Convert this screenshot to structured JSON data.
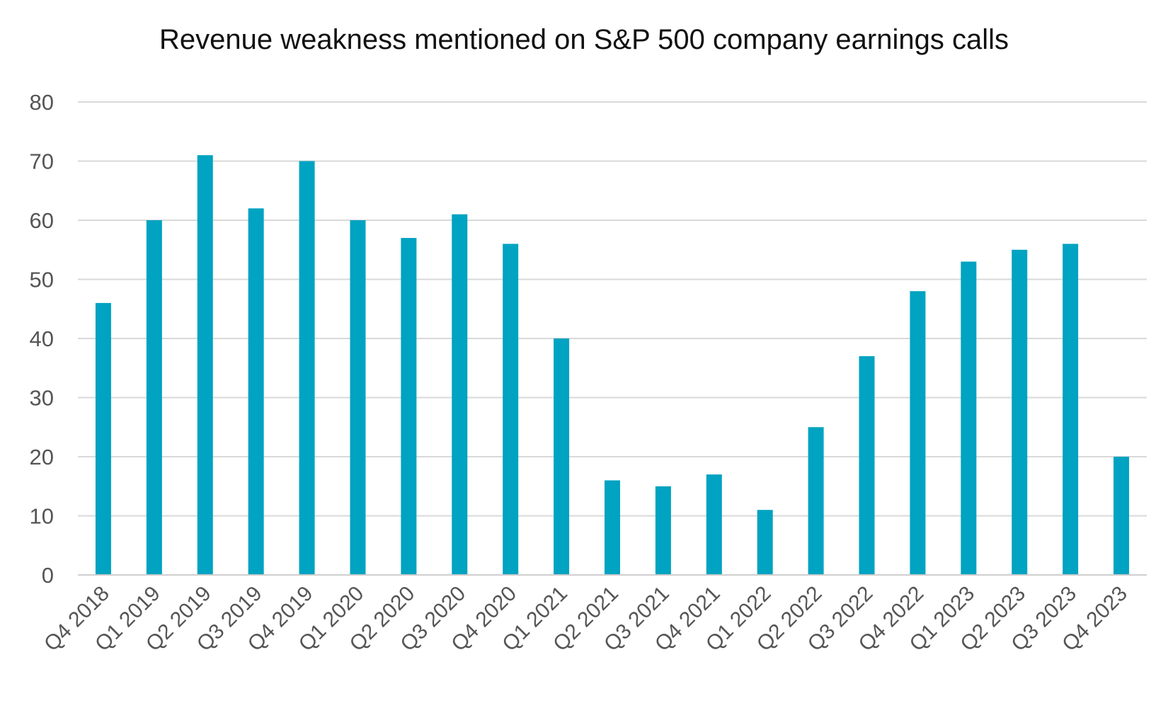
{
  "chart_data": {
    "type": "bar",
    "title": "Revenue weakness mentioned on S&P 500 company earnings calls",
    "xlabel": "",
    "ylabel": "",
    "ylim": [
      0,
      80
    ],
    "yticks": [
      0,
      10,
      20,
      30,
      40,
      50,
      60,
      70,
      80
    ],
    "grid": true,
    "legend": "none",
    "bar_color": "#00a3c1",
    "categories": [
      "Q4 2018",
      "Q1 2019",
      "Q2 2019",
      "Q3 2019",
      "Q4 2019",
      "Q1 2020",
      "Q2 2020",
      "Q3 2020",
      "Q4 2020",
      "Q1 2021",
      "Q2 2021",
      "Q3 2021",
      "Q4 2021",
      "Q1 2022",
      "Q2 2022",
      "Q3 2022",
      "Q4 2022",
      "Q1 2023",
      "Q2 2023",
      "Q3 2023",
      "Q4 2023"
    ],
    "values": [
      46,
      60,
      71,
      62,
      70,
      60,
      57,
      61,
      56,
      40,
      16,
      15,
      17,
      11,
      25,
      37,
      48,
      53,
      55,
      56,
      20
    ]
  }
}
